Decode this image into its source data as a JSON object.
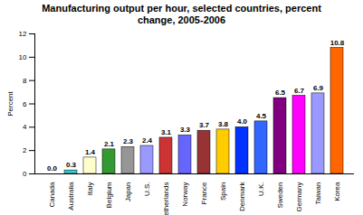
{
  "chart_data": {
    "type": "bar",
    "title": "Manufacturing output per hour, selected countries,  percent change, 2005-2006",
    "y_label": "Percent",
    "categories": [
      "Canada",
      "Australia",
      "Italy",
      "Belgium",
      "Japan",
      "U.S.",
      "Netherlands",
      "Norway",
      "France",
      "Spain",
      "Denmark",
      "U.K.",
      "Sweden",
      "Germany",
      "Taiwan",
      "Korea"
    ],
    "values": [
      0.0,
      0.3,
      1.4,
      2.1,
      2.3,
      2.4,
      3.1,
      3.3,
      3.7,
      3.8,
      4.0,
      4.5,
      6.5,
      6.7,
      6.9,
      10.8
    ],
    "value_labels": [
      "0.0",
      "0.3",
      "1.4",
      "2.1",
      "2.3",
      "2.4",
      "3.1",
      "3.3",
      "3.7",
      "3.8",
      "4.0",
      "4.5",
      "6.5",
      "6.7",
      "6.9",
      "10.8"
    ],
    "colors": [
      "#000080",
      "#33cccc",
      "#ffffcc",
      "#339933",
      "#969696",
      "#9999ff",
      "#cc3333",
      "#6666ff",
      "#993333",
      "#ffcc00",
      "#0033ff",
      "#3366ff",
      "#800080",
      "#ff00ff",
      "#9999ff",
      "#ff6600"
    ],
    "ylim": [
      0,
      12
    ],
    "yticks": [
      0,
      2,
      4,
      6,
      8,
      10,
      12
    ],
    "grid": false,
    "data_labels": true
  }
}
